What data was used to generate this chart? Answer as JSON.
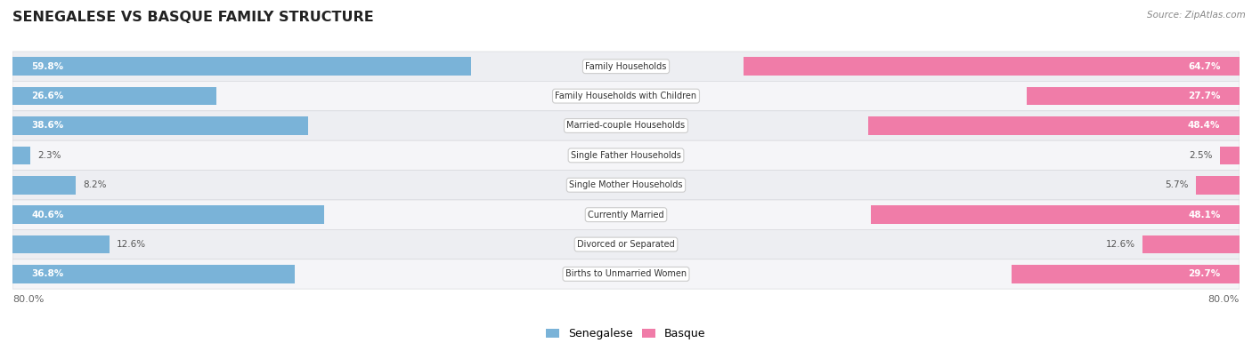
{
  "title": "SENEGALESE VS BASQUE FAMILY STRUCTURE",
  "source": "Source: ZipAtlas.com",
  "categories": [
    "Family Households",
    "Family Households with Children",
    "Married-couple Households",
    "Single Father Households",
    "Single Mother Households",
    "Currently Married",
    "Divorced or Separated",
    "Births to Unmarried Women"
  ],
  "senegalese": [
    59.8,
    26.6,
    38.6,
    2.3,
    8.2,
    40.6,
    12.6,
    36.8
  ],
  "basque": [
    64.7,
    27.7,
    48.4,
    2.5,
    5.7,
    48.1,
    12.6,
    29.7
  ],
  "max_val": 80.0,
  "blue_color": "#7ab3d8",
  "pink_color": "#f07ca8",
  "blue_color_light": "#aecde8",
  "pink_color_light": "#f9b8d0",
  "bar_height": 0.62,
  "row_bg_even": "#edeef2",
  "row_bg_odd": "#f5f5f8",
  "row_border": "#d8d9de"
}
